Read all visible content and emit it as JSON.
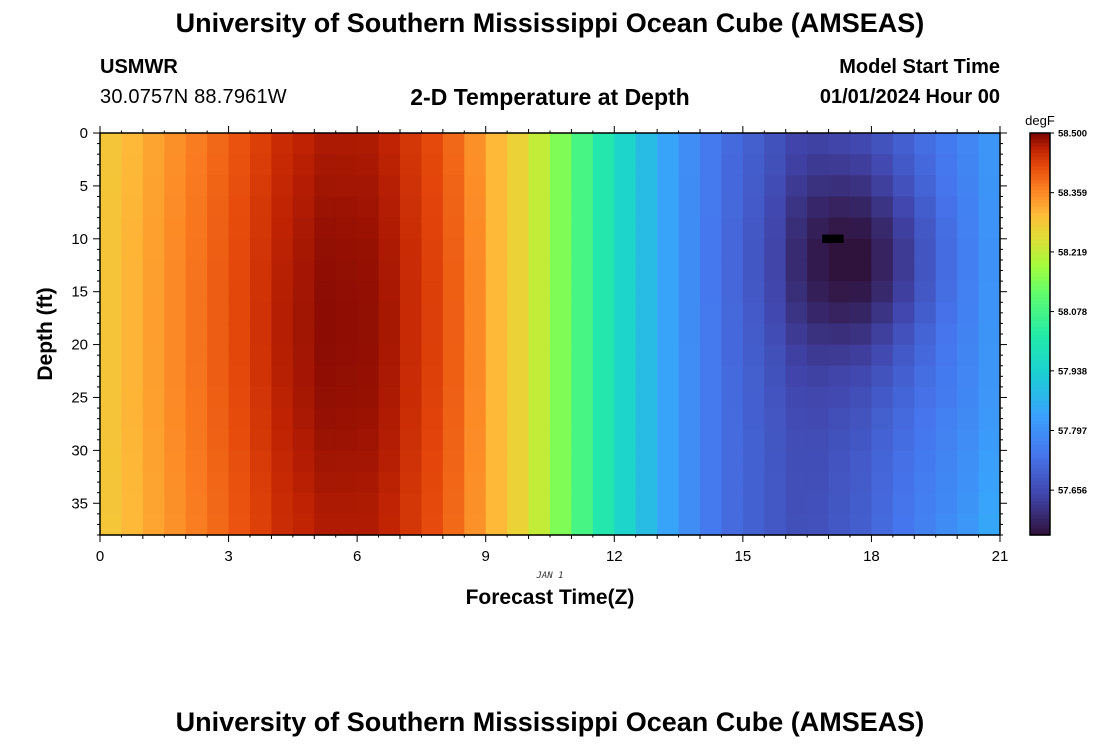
{
  "header": {
    "title": "University of Southern Mississippi Ocean Cube (AMSEAS)",
    "station_id": "USMWR",
    "coordinates": "30.0757N  88.7961W",
    "subtitle": "2-D Temperature at Depth",
    "model_start_label": "Model Start Time",
    "model_start_value": "01/01/2024 Hour 00"
  },
  "footer": {
    "title": "University of Southern Mississippi Ocean Cube (AMSEAS)"
  },
  "chart_data": {
    "type": "heatmap",
    "title": "2-D Temperature at Depth",
    "xlabel": "Forecast Time(Z)",
    "ylabel": "Depth (ft)",
    "date_annotation": "JAN 1",
    "xlim": [
      0,
      21
    ],
    "ylim": [
      38,
      0
    ],
    "x_ticks": [
      0,
      3,
      6,
      9,
      12,
      15,
      18,
      21
    ],
    "y_ticks": [
      0,
      5,
      10,
      15,
      20,
      25,
      30,
      35
    ],
    "colorbar": {
      "label": "degF",
      "min": 57.55,
      "max": 58.5,
      "tick_labels": [
        "58.500",
        "58.359",
        "58.219",
        "58.078",
        "57.938",
        "57.797",
        "57.656"
      ],
      "tick_values": [
        58.5,
        58.359,
        58.219,
        58.078,
        57.938,
        57.797,
        57.656
      ]
    },
    "time_hours": [
      0,
      0.5,
      1,
      1.5,
      2,
      2.5,
      3,
      3.5,
      4,
      4.5,
      5,
      5.5,
      6,
      6.5,
      7,
      7.5,
      8,
      8.5,
      9,
      9.5,
      10,
      10.5,
      11,
      11.5,
      12,
      12.5,
      13,
      13.5,
      14,
      14.5,
      15,
      15.5,
      16,
      16.5,
      17,
      17.5,
      18,
      18.5,
      19,
      19.5,
      20,
      20.5,
      21
    ],
    "surface_temperature_degF": [
      58.29,
      58.31,
      58.33,
      58.35,
      58.37,
      58.39,
      58.41,
      58.43,
      58.45,
      58.46,
      58.47,
      58.47,
      58.47,
      58.46,
      58.44,
      58.42,
      58.39,
      58.35,
      58.31,
      58.27,
      58.22,
      58.15,
      58.08,
      58.01,
      57.95,
      57.89,
      57.84,
      57.79,
      57.75,
      57.72,
      57.7,
      57.68,
      57.66,
      57.66,
      57.67,
      57.68,
      57.7,
      57.72,
      57.74,
      57.76,
      57.78,
      57.81,
      57.85
    ],
    "min_temperature_degF": 57.55,
    "min_location": {
      "time_hour": 17.5,
      "depth_ft": 12
    },
    "missing_cell": {
      "time_hour": 17.0,
      "depth_ft": 10
    }
  }
}
